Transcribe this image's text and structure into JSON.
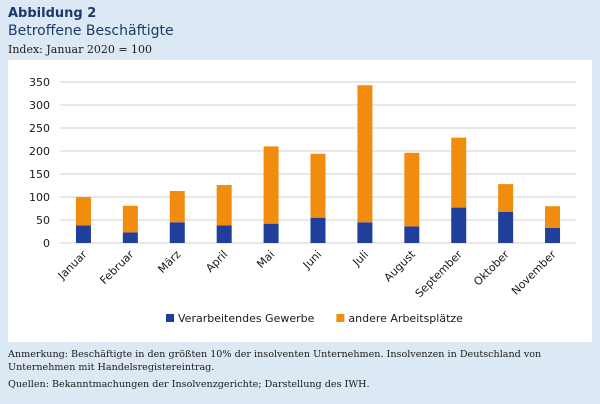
{
  "figure": {
    "kicker": "Abbildung 2",
    "title": "Betroffene Beschäftigte",
    "subtitle": "Index: Januar 2020 = 100"
  },
  "chart_data": {
    "type": "bar",
    "stacked": true,
    "categories": [
      "Januar",
      "Februar",
      "März",
      "April",
      "Mai",
      "Juni",
      "Juli",
      "August",
      "September",
      "Oktober",
      "November"
    ],
    "series": [
      {
        "name": "Verarbeitendes Gewerbe",
        "color": "#1f3f9b",
        "values": [
          38,
          23,
          45,
          38,
          42,
          55,
          45,
          36,
          77,
          68,
          33
        ]
      },
      {
        "name": "andere Arbeitsplätze",
        "color": "#f28c0f",
        "values": [
          62,
          58,
          68,
          88,
          168,
          139,
          298,
          160,
          152,
          60,
          47
        ]
      }
    ],
    "ylim": [
      0,
      350
    ],
    "yticks": [
      "0",
      "50",
      "100",
      "150",
      "200",
      "250",
      "300",
      "350"
    ],
    "grid": true,
    "legend_position": "bottom"
  },
  "notes": {
    "remark": "Anmerkung: Beschäftigte in den größten 10% der insolventen Unternehmen. Insolvenzen in Deutschland von Unternehmen mit Handelsregistereintrag.",
    "sources": "Quellen: Bekanntmachungen der Insolvenzgerichte; Darstellung des IWH."
  }
}
